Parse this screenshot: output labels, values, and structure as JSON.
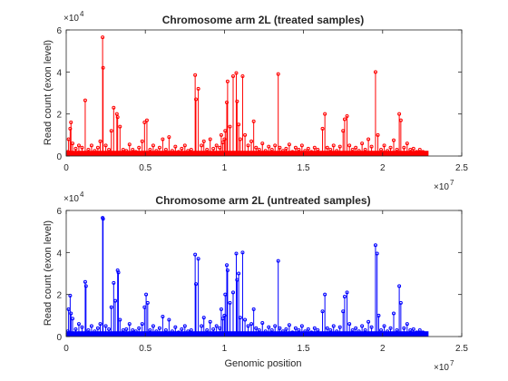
{
  "chart_data": [
    {
      "type": "stem",
      "title": "Chromosome arm 2L (treated samples)",
      "ylabel": "Read count (exon level)",
      "xlabel": "",
      "xlim": [
        0,
        25000000
      ],
      "ylim": [
        0,
        60000
      ],
      "x_ticks": [
        0,
        5000000,
        10000000,
        15000000,
        20000000,
        25000000
      ],
      "x_tick_labels": [
        "0",
        "0.5",
        "1",
        "1.5",
        "2",
        "2.5"
      ],
      "x_exponent": "7",
      "y_ticks": [
        0,
        20000,
        40000,
        60000
      ],
      "y_tick_labels": [
        "0",
        "2",
        "4",
        "6"
      ],
      "y_exponent": "4",
      "color": "#ff0000",
      "marker": "dot",
      "points": [
        [
          100000,
          2000
        ],
        [
          150000,
          8000
        ],
        [
          250000,
          13000
        ],
        [
          300000,
          16000
        ],
        [
          400000,
          6000
        ],
        [
          600000,
          3500
        ],
        [
          800000,
          5000
        ],
        [
          1000000,
          4000
        ],
        [
          1200000,
          26500
        ],
        [
          1400000,
          3000
        ],
        [
          1600000,
          5000
        ],
        [
          1800000,
          2500
        ],
        [
          2000000,
          4000
        ],
        [
          2150000,
          7000
        ],
        [
          2300000,
          56500
        ],
        [
          2330000,
          42000
        ],
        [
          2500000,
          5000
        ],
        [
          2700000,
          3000
        ],
        [
          2850000,
          12000
        ],
        [
          3000000,
          23000
        ],
        [
          3200000,
          20000
        ],
        [
          3250000,
          18500
        ],
        [
          3400000,
          14000
        ],
        [
          3600000,
          3000
        ],
        [
          3800000,
          2500
        ],
        [
          4000000,
          5500
        ],
        [
          4200000,
          3000
        ],
        [
          4400000,
          2000
        ],
        [
          4600000,
          4000
        ],
        [
          4800000,
          7000
        ],
        [
          4950000,
          16000
        ],
        [
          5100000,
          17000
        ],
        [
          5300000,
          3000
        ],
        [
          5500000,
          5000
        ],
        [
          5700000,
          2500
        ],
        [
          5900000,
          4000
        ],
        [
          6100000,
          8000
        ],
        [
          6300000,
          3000
        ],
        [
          6500000,
          9000
        ],
        [
          6700000,
          2500
        ],
        [
          6900000,
          4500
        ],
        [
          7100000,
          2000
        ],
        [
          7300000,
          3500
        ],
        [
          7500000,
          5000
        ],
        [
          7700000,
          2500
        ],
        [
          7900000,
          3000
        ],
        [
          8150000,
          38500
        ],
        [
          8200000,
          27000
        ],
        [
          8350000,
          32000
        ],
        [
          8550000,
          5000
        ],
        [
          8700000,
          7000
        ],
        [
          8900000,
          3000
        ],
        [
          9100000,
          8000
        ],
        [
          9300000,
          3500
        ],
        [
          9500000,
          5000
        ],
        [
          9700000,
          4000
        ],
        [
          9800000,
          10000
        ],
        [
          9900000,
          6500
        ],
        [
          10000000,
          8000
        ],
        [
          10050000,
          12000
        ],
        [
          10150000,
          25500
        ],
        [
          10200000,
          35500
        ],
        [
          10350000,
          14000
        ],
        [
          10550000,
          38000
        ],
        [
          10750000,
          39500
        ],
        [
          10800000,
          26000
        ],
        [
          10900000,
          15000
        ],
        [
          11000000,
          8000
        ],
        [
          11150000,
          38000
        ],
        [
          11300000,
          10000
        ],
        [
          11500000,
          5000
        ],
        [
          11700000,
          7000
        ],
        [
          11850000,
          16500
        ],
        [
          12000000,
          4000
        ],
        [
          12200000,
          3000
        ],
        [
          12400000,
          6000
        ],
        [
          12600000,
          2500
        ],
        [
          12800000,
          4500
        ],
        [
          13000000,
          3000
        ],
        [
          13200000,
          5000
        ],
        [
          13400000,
          39000
        ],
        [
          13500000,
          4000
        ],
        [
          13700000,
          2500
        ],
        [
          13900000,
          3500
        ],
        [
          14100000,
          5500
        ],
        [
          14300000,
          2000
        ],
        [
          14500000,
          4000
        ],
        [
          14700000,
          3000
        ],
        [
          14900000,
          5000
        ],
        [
          15100000,
          2500
        ],
        [
          15300000,
          3500
        ],
        [
          15500000,
          2000
        ],
        [
          15700000,
          4000
        ],
        [
          15900000,
          3000
        ],
        [
          16200000,
          13000
        ],
        [
          16350000,
          20000
        ],
        [
          16500000,
          4000
        ],
        [
          16700000,
          3000
        ],
        [
          16900000,
          5000
        ],
        [
          17100000,
          2500
        ],
        [
          17300000,
          4500
        ],
        [
          17500000,
          12000
        ],
        [
          17600000,
          17500
        ],
        [
          17750000,
          19000
        ],
        [
          17900000,
          5000
        ],
        [
          18100000,
          3000
        ],
        [
          18300000,
          4000
        ],
        [
          18500000,
          2500
        ],
        [
          18700000,
          6000
        ],
        [
          18900000,
          3000
        ],
        [
          19100000,
          8000
        ],
        [
          19300000,
          4500
        ],
        [
          19550000,
          40000
        ],
        [
          19700000,
          10000
        ],
        [
          19900000,
          3000
        ],
        [
          20100000,
          5000
        ],
        [
          20300000,
          2500
        ],
        [
          20500000,
          4000
        ],
        [
          20700000,
          7500
        ],
        [
          20900000,
          3000
        ],
        [
          21050000,
          20000
        ],
        [
          21150000,
          17000
        ],
        [
          21350000,
          4000
        ],
        [
          21550000,
          6000
        ],
        [
          21750000,
          3000
        ],
        [
          21950000,
          3500
        ],
        [
          22150000,
          2000
        ],
        [
          22350000,
          3000
        ],
        [
          22550000,
          2000
        ],
        [
          22750000,
          1500
        ]
      ]
    },
    {
      "type": "stem",
      "title": "Chromosome arm 2L (untreated samples)",
      "ylabel": "Read count (exon level)",
      "xlabel": "Genomic position",
      "xlim": [
        0,
        25000000
      ],
      "ylim": [
        0,
        60000
      ],
      "x_ticks": [
        0,
        5000000,
        10000000,
        15000000,
        20000000,
        25000000
      ],
      "x_tick_labels": [
        "0",
        "0.5",
        "1",
        "1.5",
        "2",
        "2.5"
      ],
      "x_exponent": "7",
      "y_ticks": [
        0,
        20000,
        40000,
        60000
      ],
      "y_tick_labels": [
        "0",
        "2",
        "4",
        "6"
      ],
      "y_exponent": "4",
      "color": "#0000ff",
      "marker": "dot",
      "points": [
        [
          100000,
          2500
        ],
        [
          150000,
          13000
        ],
        [
          250000,
          19500
        ],
        [
          300000,
          11000
        ],
        [
          400000,
          8500
        ],
        [
          600000,
          3500
        ],
        [
          800000,
          6000
        ],
        [
          1000000,
          4500
        ],
        [
          1200000,
          26000
        ],
        [
          1250000,
          24000
        ],
        [
          1400000,
          3000
        ],
        [
          1600000,
          5000
        ],
        [
          1800000,
          2500
        ],
        [
          2000000,
          4000
        ],
        [
          2150000,
          6000
        ],
        [
          2300000,
          56500
        ],
        [
          2330000,
          56000
        ],
        [
          2500000,
          5000
        ],
        [
          2700000,
          3500
        ],
        [
          2850000,
          14000
        ],
        [
          3000000,
          25500
        ],
        [
          3100000,
          17000
        ],
        [
          3250000,
          31500
        ],
        [
          3300000,
          30500
        ],
        [
          3400000,
          8000
        ],
        [
          3600000,
          3000
        ],
        [
          3800000,
          3500
        ],
        [
          4000000,
          6000
        ],
        [
          4200000,
          3000
        ],
        [
          4400000,
          2500
        ],
        [
          4600000,
          4000
        ],
        [
          4800000,
          6000
        ],
        [
          4950000,
          14000
        ],
        [
          5050000,
          20000
        ],
        [
          5150000,
          16000
        ],
        [
          5300000,
          3000
        ],
        [
          5500000,
          5000
        ],
        [
          5700000,
          2500
        ],
        [
          5900000,
          4000
        ],
        [
          6100000,
          9500
        ],
        [
          6300000,
          3000
        ],
        [
          6500000,
          8000
        ],
        [
          6700000,
          2500
        ],
        [
          6900000,
          4500
        ],
        [
          7100000,
          2000
        ],
        [
          7300000,
          3500
        ],
        [
          7500000,
          5000
        ],
        [
          7700000,
          2500
        ],
        [
          7900000,
          3000
        ],
        [
          8150000,
          39000
        ],
        [
          8200000,
          25000
        ],
        [
          8350000,
          37000
        ],
        [
          8550000,
          5000
        ],
        [
          8700000,
          9000
        ],
        [
          8900000,
          3000
        ],
        [
          9100000,
          7000
        ],
        [
          9300000,
          3500
        ],
        [
          9500000,
          5000
        ],
        [
          9700000,
          4000
        ],
        [
          9800000,
          13000
        ],
        [
          9900000,
          8500
        ],
        [
          10000000,
          10000
        ],
        [
          10050000,
          20000
        ],
        [
          10150000,
          34000
        ],
        [
          10200000,
          31500
        ],
        [
          10350000,
          16000
        ],
        [
          10550000,
          21000
        ],
        [
          10750000,
          39500
        ],
        [
          10800000,
          27000
        ],
        [
          10900000,
          30000
        ],
        [
          11000000,
          9000
        ],
        [
          11150000,
          40000
        ],
        [
          11300000,
          8000
        ],
        [
          11500000,
          5000
        ],
        [
          11700000,
          6000
        ],
        [
          11850000,
          13000
        ],
        [
          12000000,
          4000
        ],
        [
          12200000,
          3000
        ],
        [
          12400000,
          6500
        ],
        [
          12600000,
          2500
        ],
        [
          12800000,
          4500
        ],
        [
          13000000,
          3000
        ],
        [
          13200000,
          5000
        ],
        [
          13400000,
          36000
        ],
        [
          13500000,
          4000
        ],
        [
          13700000,
          2500
        ],
        [
          13900000,
          3500
        ],
        [
          14100000,
          5500
        ],
        [
          14300000,
          2000
        ],
        [
          14500000,
          4000
        ],
        [
          14700000,
          3000
        ],
        [
          14900000,
          5000
        ],
        [
          15100000,
          2500
        ],
        [
          15300000,
          3500
        ],
        [
          15500000,
          2000
        ],
        [
          15700000,
          4000
        ],
        [
          15900000,
          3000
        ],
        [
          16200000,
          12000
        ],
        [
          16350000,
          20000
        ],
        [
          16500000,
          4000
        ],
        [
          16700000,
          3000
        ],
        [
          16900000,
          5000
        ],
        [
          17100000,
          2500
        ],
        [
          17300000,
          4500
        ],
        [
          17500000,
          12000
        ],
        [
          17600000,
          19000
        ],
        [
          17750000,
          21000
        ],
        [
          17900000,
          6000
        ],
        [
          18100000,
          3000
        ],
        [
          18300000,
          4000
        ],
        [
          18500000,
          2500
        ],
        [
          18700000,
          5000
        ],
        [
          18900000,
          3000
        ],
        [
          19100000,
          7000
        ],
        [
          19300000,
          4500
        ],
        [
          19550000,
          43500
        ],
        [
          19650000,
          39500
        ],
        [
          19750000,
          10000
        ],
        [
          19900000,
          3000
        ],
        [
          20100000,
          5000
        ],
        [
          20300000,
          2500
        ],
        [
          20500000,
          4000
        ],
        [
          20700000,
          11000
        ],
        [
          20900000,
          3000
        ],
        [
          21050000,
          24000
        ],
        [
          21150000,
          16000
        ],
        [
          21350000,
          4000
        ],
        [
          21550000,
          6000
        ],
        [
          21750000,
          3000
        ],
        [
          21950000,
          3500
        ],
        [
          22150000,
          2000
        ],
        [
          22350000,
          3000
        ],
        [
          22550000,
          2000
        ],
        [
          22750000,
          1500
        ]
      ]
    }
  ]
}
